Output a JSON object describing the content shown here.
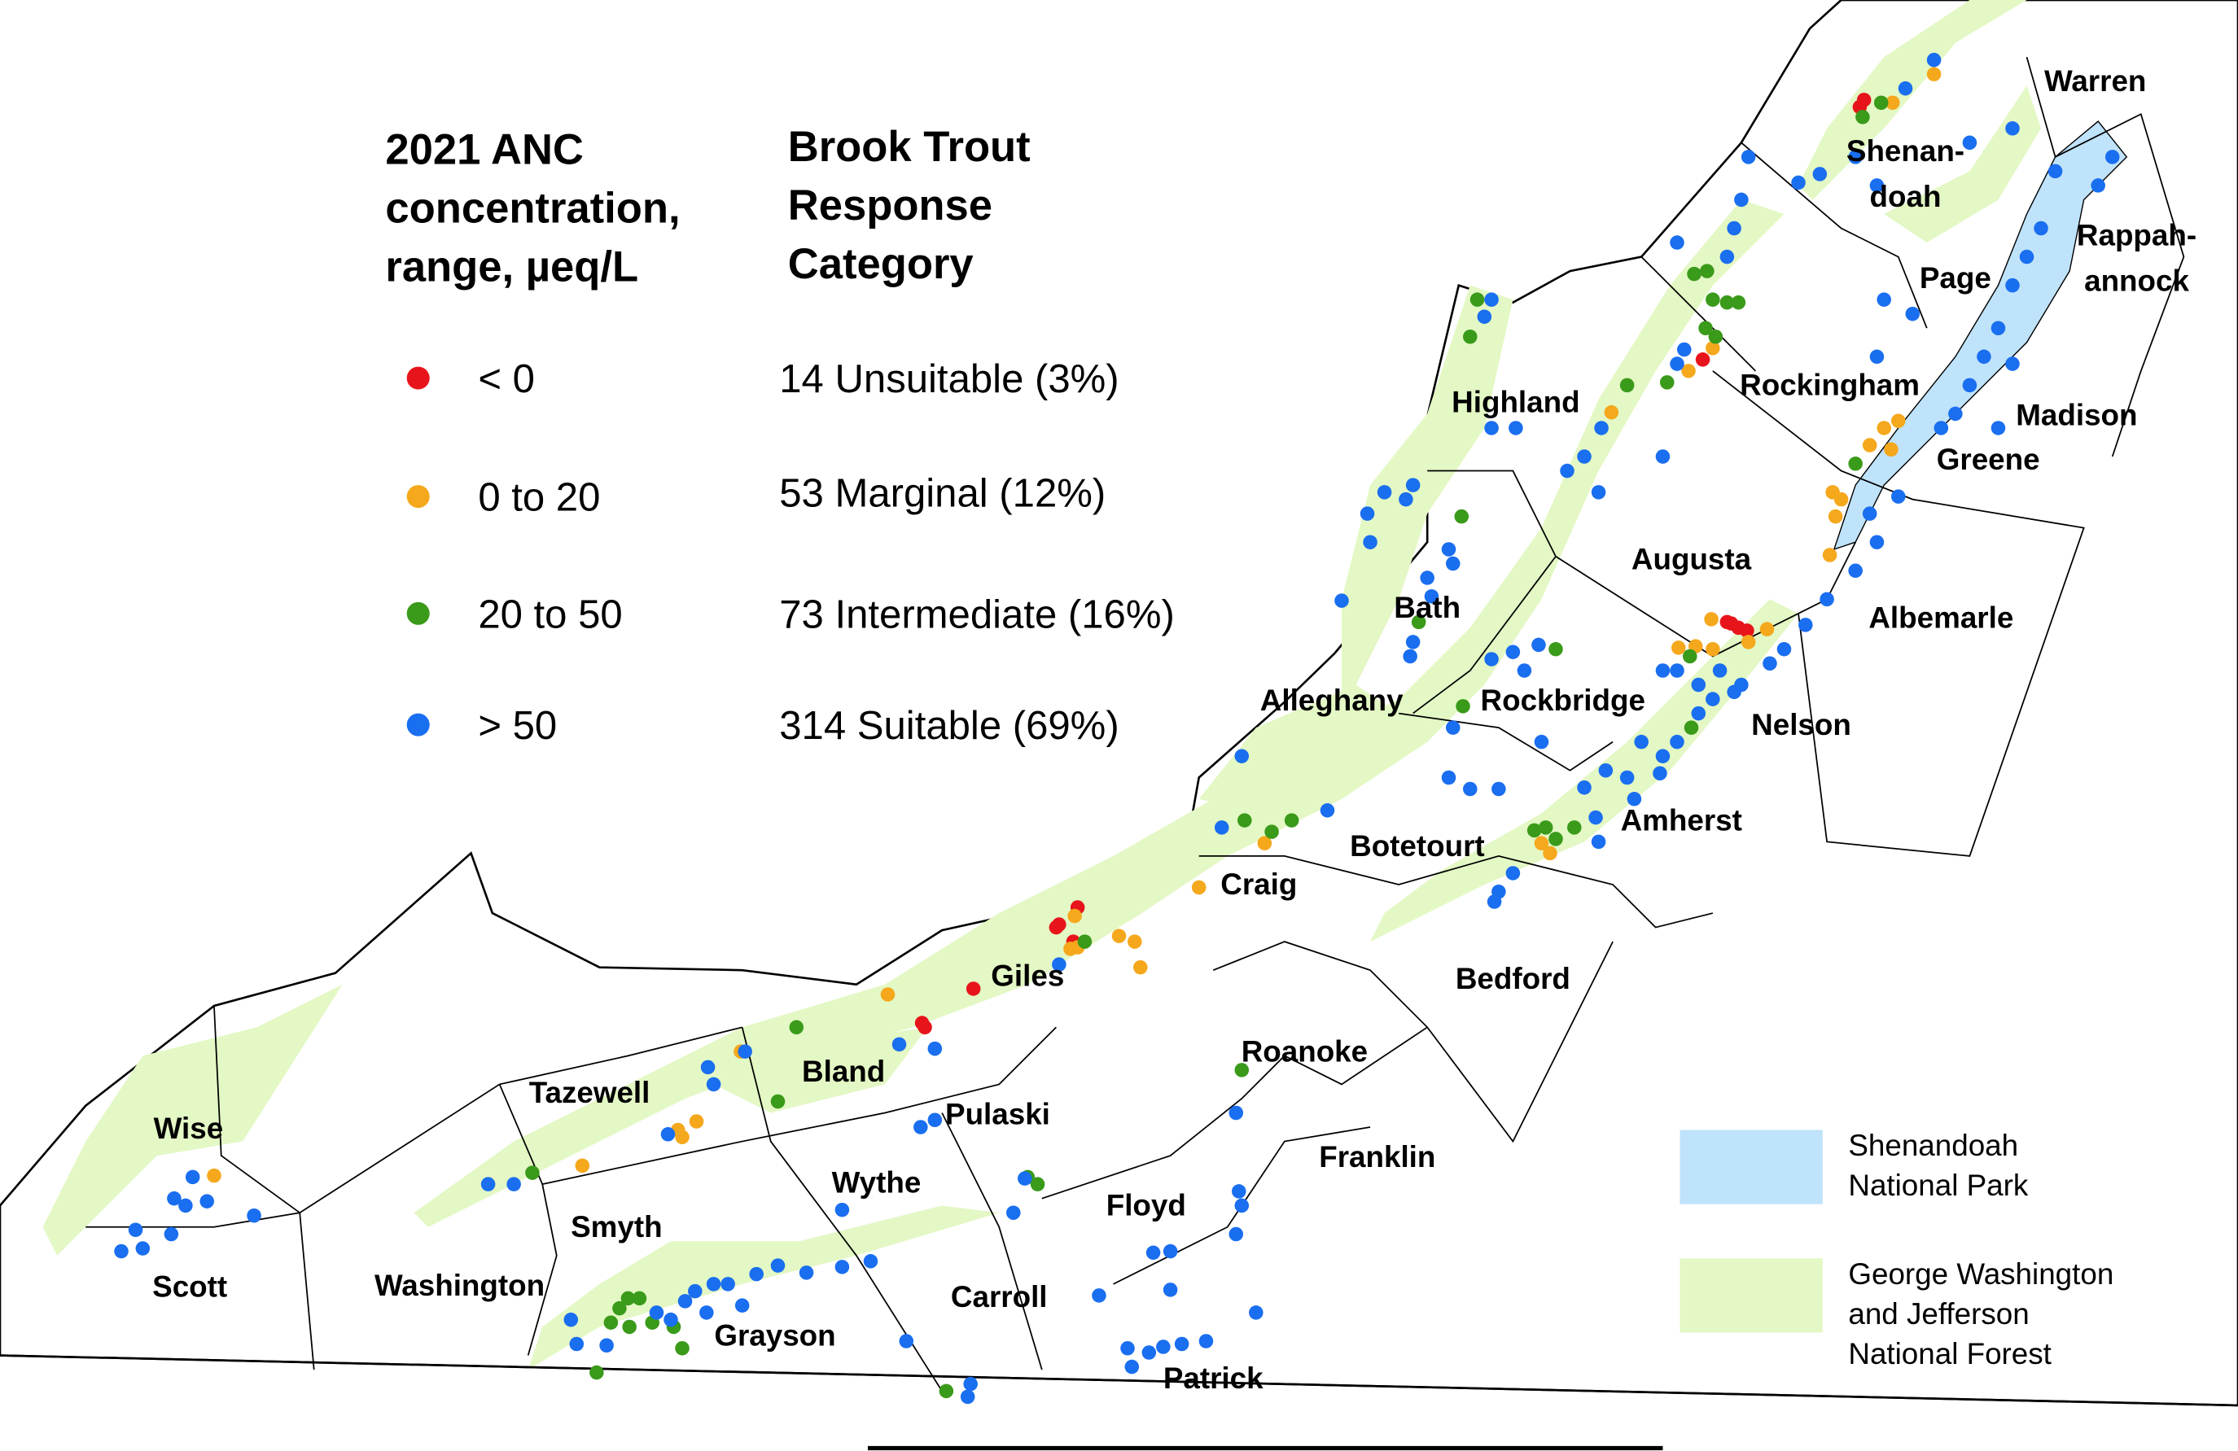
{
  "anc_legend": {
    "title_lines": [
      "2021 ANC",
      "concentration,",
      "range, µeq/L"
    ]
  },
  "response_legend": {
    "title_lines": [
      "Brook Trout",
      "Response",
      "Category"
    ]
  },
  "classes": [
    {
      "range": "< 0",
      "response": "14 Unsuitable (3%)",
      "color": "#e8141b"
    },
    {
      "range": "0 to 20",
      "response": "53 Marginal (12%)",
      "color": "#f5a81c"
    },
    {
      "range": "20 to 50",
      "response": "73 Intermediate (16%)",
      "color": "#3a9a1a"
    },
    {
      "range": "> 50",
      "response": "314 Suitable (69%)",
      "color": "#1a6ef0"
    }
  ],
  "counties": [
    {
      "lines": [
        "Warren"
      ]
    },
    {
      "lines": [
        "Shenan-",
        "doah"
      ]
    },
    {
      "lines": [
        "Page"
      ]
    },
    {
      "lines": [
        "Rappah-",
        "annock"
      ]
    },
    {
      "lines": [
        "Highland"
      ]
    },
    {
      "lines": [
        "Rockingham"
      ]
    },
    {
      "lines": [
        "Madison"
      ]
    },
    {
      "lines": [
        "Greene"
      ]
    },
    {
      "lines": [
        "Augusta"
      ]
    },
    {
      "lines": [
        "Bath"
      ]
    },
    {
      "lines": [
        "Albemarle"
      ]
    },
    {
      "lines": [
        "Alleghany"
      ]
    },
    {
      "lines": [
        "Rockbridge"
      ]
    },
    {
      "lines": [
        "Nelson"
      ]
    },
    {
      "lines": [
        "Amherst"
      ]
    },
    {
      "lines": [
        "Botetourt"
      ]
    },
    {
      "lines": [
        "Craig"
      ]
    },
    {
      "lines": [
        "Bedford"
      ]
    },
    {
      "lines": [
        "Giles"
      ]
    },
    {
      "lines": [
        "Roanoke"
      ]
    },
    {
      "lines": [
        "Bland"
      ]
    },
    {
      "lines": [
        "Tazewell"
      ]
    },
    {
      "lines": [
        "Pulaski"
      ]
    },
    {
      "lines": [
        "Wise"
      ]
    },
    {
      "lines": [
        "Franklin"
      ]
    },
    {
      "lines": [
        "Wythe"
      ]
    },
    {
      "lines": [
        "Floyd"
      ]
    },
    {
      "lines": [
        "Smyth"
      ]
    },
    {
      "lines": [
        "Scott"
      ]
    },
    {
      "lines": [
        "Washington"
      ]
    },
    {
      "lines": [
        "Carroll"
      ]
    },
    {
      "lines": [
        "Grayson"
      ]
    },
    {
      "lines": [
        "Patrick"
      ]
    }
  ],
  "area_legend": [
    {
      "lines": [
        "Shenandoah",
        "National Park"
      ],
      "color": "#bfe3fa"
    },
    {
      "lines": [
        "George Washington",
        "and Jefferson",
        "National Forest"
      ],
      "color": "#e3f8c4"
    }
  ]
}
